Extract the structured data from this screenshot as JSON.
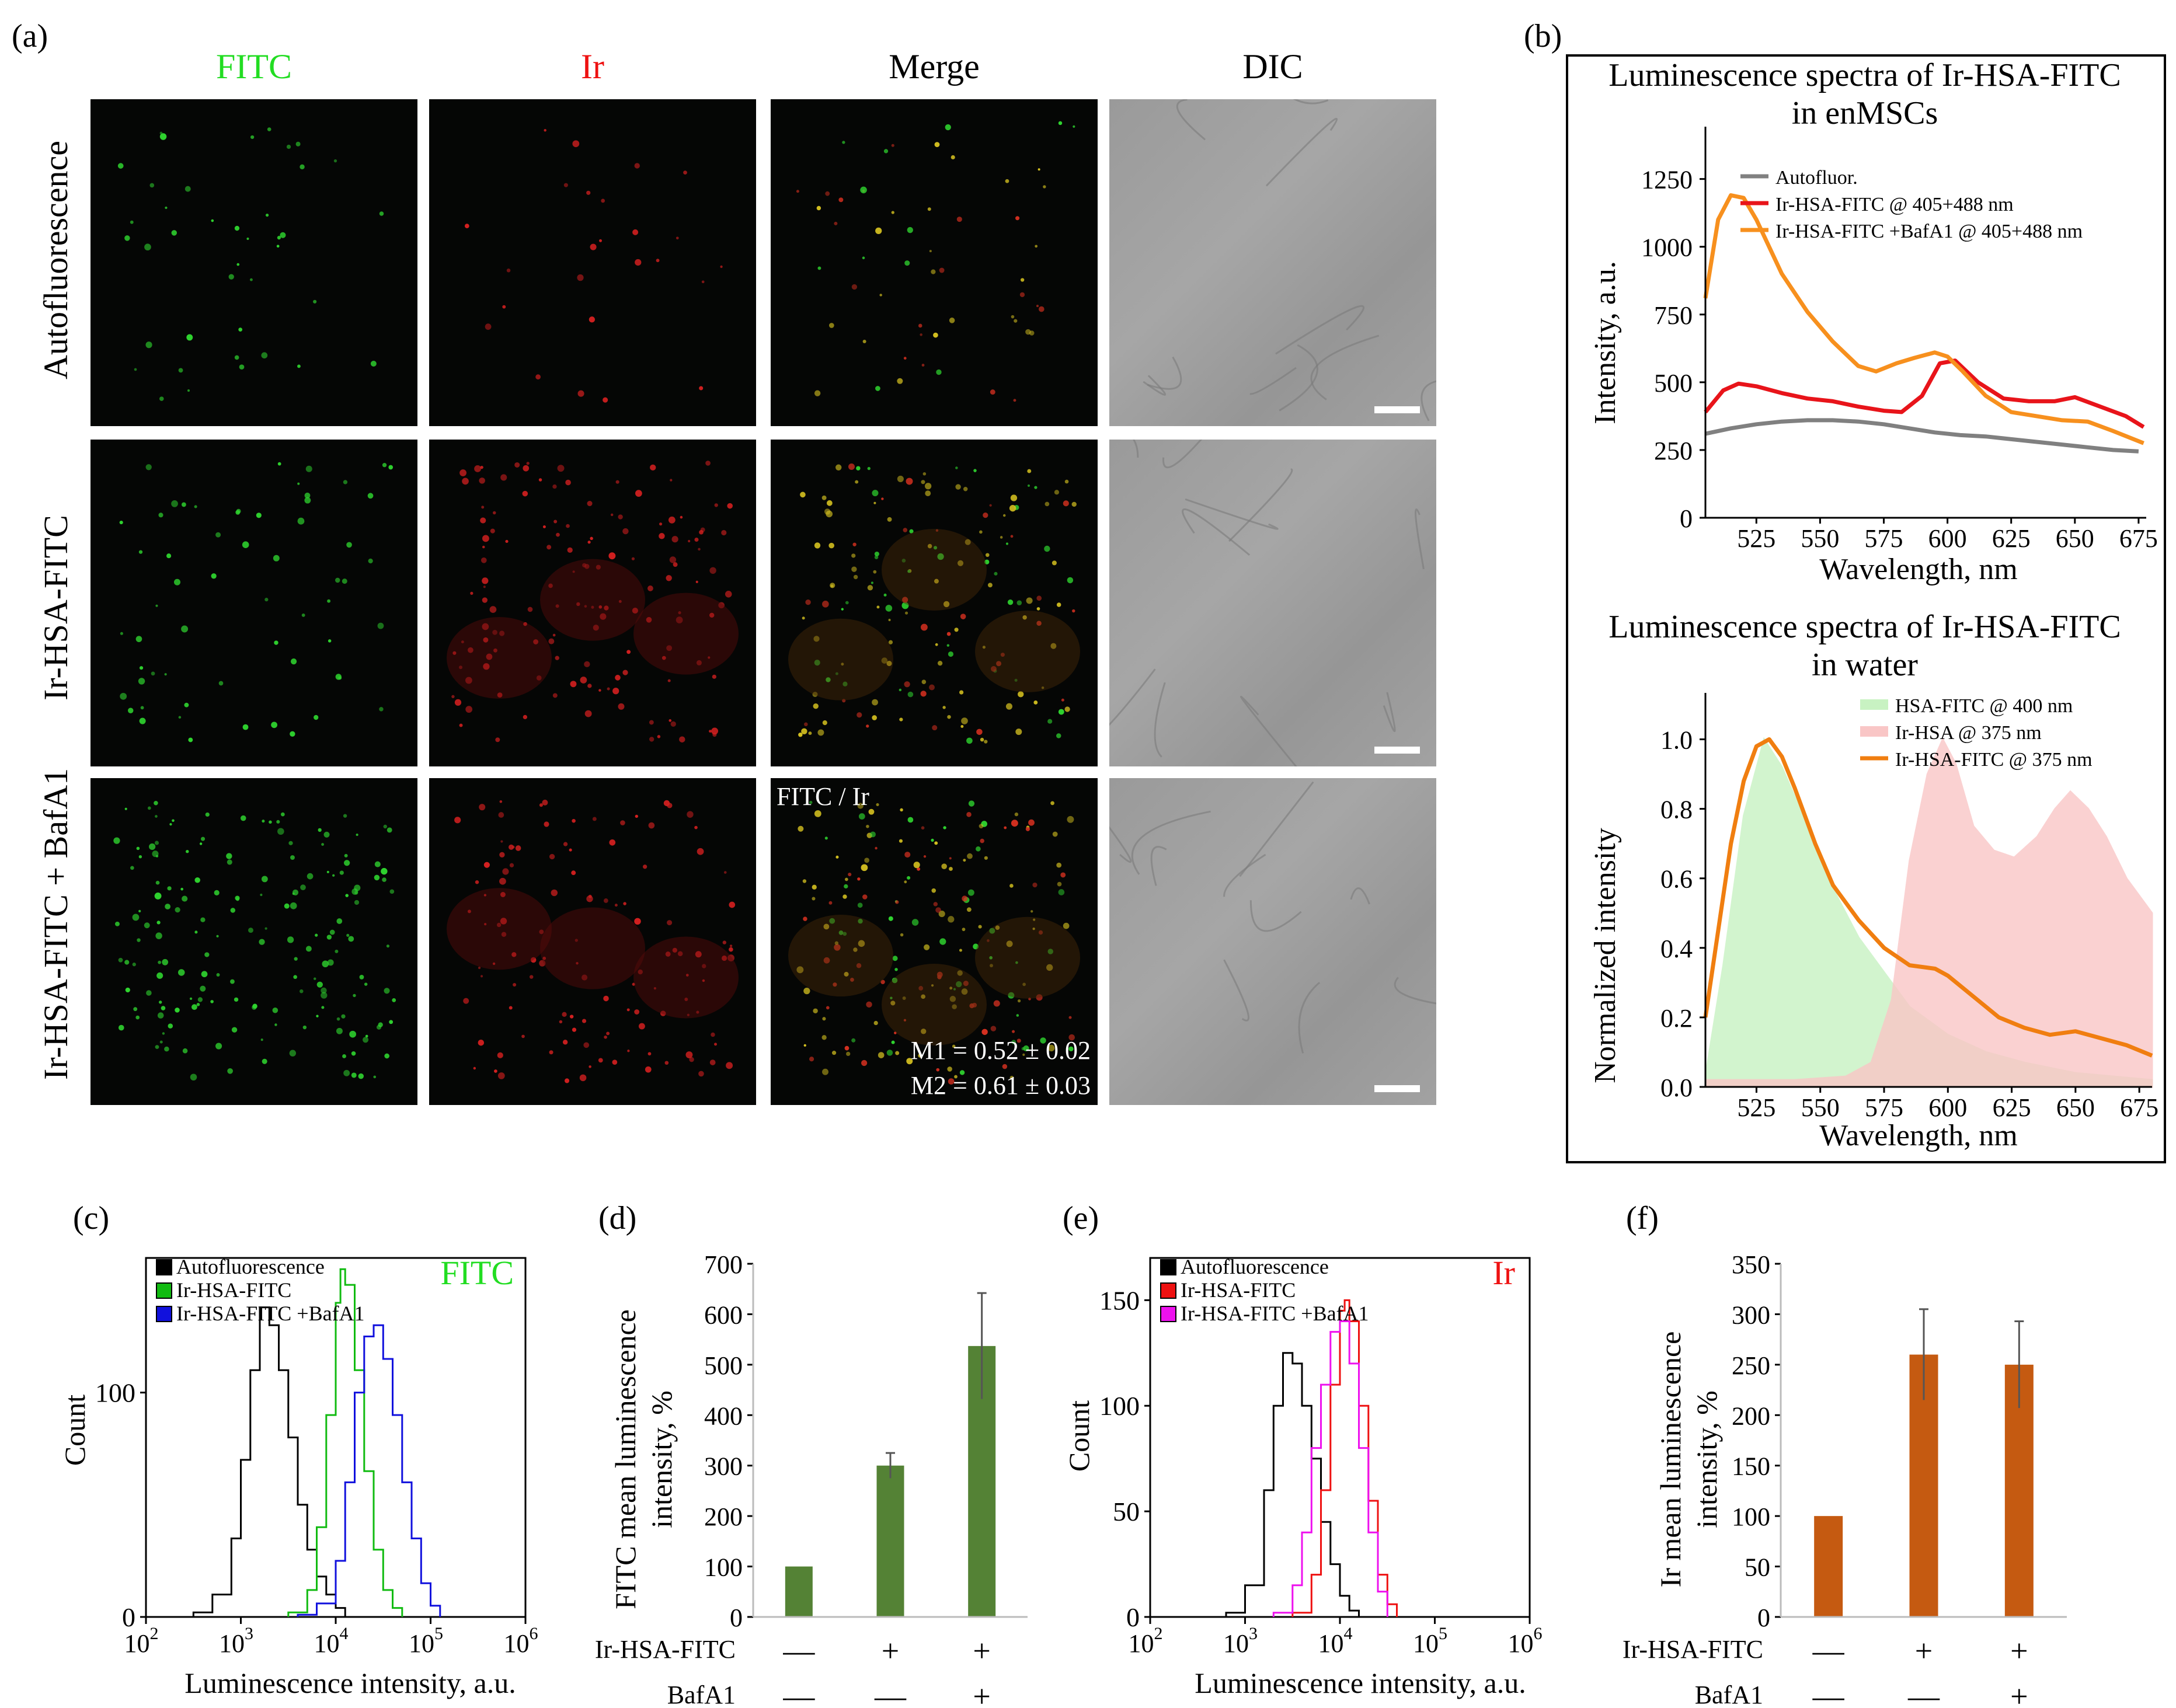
{
  "panel_a": {
    "letter": "(a)",
    "columns": [
      {
        "label": "FITC",
        "color": "#22dd22"
      },
      {
        "label": "Ir",
        "color": "#ee1111"
      },
      {
        "label": "Merge",
        "color": "#000000"
      },
      {
        "label": "DIC",
        "color": "#000000"
      }
    ],
    "rows": [
      "Autofluorescence",
      "Ir-HSA-FITC",
      "Ir-HSA-FITC + BafA1"
    ],
    "merge_label": "FITC / Ir",
    "m1": "M1 = 0.52 ± 0.02",
    "m2": "M2 = 0.61 ± 0.03"
  },
  "panel_b": {
    "letter": "(b)",
    "chart_data": [
      {
        "type": "line",
        "title_line1": "Luminescence spectra of Ir-HSA-FITC",
        "title_line2": "in enMSCs",
        "xlabel": "Wavelength, nm",
        "ylabel": "Intensity, a.u.",
        "xlim": [
          505,
          678
        ],
        "ylim": [
          0,
          1400
        ],
        "xticks": [
          "525",
          "550",
          "575",
          "600",
          "625",
          "650",
          "675"
        ],
        "yticks": [
          "0",
          "250",
          "500",
          "750",
          "1000",
          "1250"
        ],
        "series": [
          {
            "name": "Autofluor.",
            "color": "#808080",
            "x": [
              505,
              515,
              525,
              535,
              545,
              555,
              565,
              575,
              585,
              595,
              605,
              615,
              625,
              635,
              645,
              655,
              665,
              675
            ],
            "y": [
              310,
              330,
              345,
              355,
              360,
              360,
              355,
              345,
              330,
              315,
              305,
              300,
              290,
              280,
              270,
              260,
              250,
              245
            ]
          },
          {
            "name": "Ir-HSA-FITC @ 405+488 nm",
            "color": "#e8141a",
            "x": [
              505,
              512,
              518,
              525,
              535,
              545,
              555,
              565,
              575,
              582,
              590,
              597,
              603,
              612,
              622,
              632,
              642,
              650,
              660,
              670,
              677
            ],
            "y": [
              390,
              470,
              495,
              485,
              460,
              440,
              430,
              410,
              395,
              390,
              450,
              570,
              580,
              500,
              440,
              430,
              430,
              445,
              410,
              375,
              335
            ]
          },
          {
            "name": "Ir-HSA-FITC +BafA1 @ 405+488 nm",
            "color": "#f7901e",
            "x": [
              505,
              510,
              515,
              520,
              525,
              535,
              545,
              555,
              565,
              572,
              580,
              587,
              595,
              600,
              606,
              615,
              625,
              635,
              645,
              655,
              665,
              677
            ],
            "y": [
              810,
              1100,
              1190,
              1180,
              1100,
              900,
              760,
              650,
              560,
              540,
              570,
              590,
              610,
              595,
              540,
              450,
              390,
              375,
              360,
              355,
              320,
              275
            ]
          }
        ]
      },
      {
        "type": "area",
        "title_line1": "Luminescence spectra of Ir-HSA-FITC",
        "title_line2": "in water",
        "xlabel": "Wavelength, nm",
        "ylabel": "Normalized intensity",
        "xlim": [
          505,
          680
        ],
        "ylim": [
          0,
          1.1
        ],
        "xticks": [
          "525",
          "550",
          "575",
          "600",
          "625",
          "650",
          "675"
        ],
        "yticks": [
          "0.0",
          "0.2",
          "0.4",
          "0.6",
          "0.8",
          "1.0"
        ],
        "series": [
          {
            "name": "HSA-FITC @ 400 nm",
            "color": "#c8f2c2",
            "fill": true,
            "x": [
              505,
              512,
              520,
              528,
              535,
              545,
              555,
              565,
              575,
              585,
              600,
              615,
              630,
              650,
              665,
              680
            ],
            "y": [
              0.03,
              0.35,
              0.78,
              1.0,
              0.92,
              0.75,
              0.57,
              0.43,
              0.33,
              0.23,
              0.15,
              0.1,
              0.07,
              0.04,
              0.03,
              0.02
            ]
          },
          {
            "name": "Ir-HSA @ 375 nm",
            "color": "#f9c6c6",
            "fill": true,
            "x": [
              505,
              540,
              560,
              570,
              578,
              585,
              592,
              598,
              603,
              610,
              618,
              626,
              635,
              642,
              648,
              655,
              662,
              670,
              680
            ],
            "y": [
              0.02,
              0.02,
              0.03,
              0.07,
              0.25,
              0.65,
              0.9,
              1.0,
              0.93,
              0.75,
              0.68,
              0.66,
              0.72,
              0.8,
              0.85,
              0.8,
              0.72,
              0.6,
              0.5
            ]
          },
          {
            "name": "Ir-HSA-FITC @ 375 nm",
            "color": "#f07e10",
            "fill": false,
            "x": [
              505,
              510,
              515,
              520,
              525,
              530,
              535,
              540,
              548,
              555,
              565,
              575,
              585,
              595,
              600,
              610,
              620,
              630,
              640,
              650,
              660,
              670,
              680
            ],
            "y": [
              0.2,
              0.45,
              0.7,
              0.88,
              0.98,
              1.0,
              0.95,
              0.86,
              0.7,
              0.58,
              0.48,
              0.4,
              0.35,
              0.34,
              0.32,
              0.26,
              0.2,
              0.17,
              0.15,
              0.16,
              0.14,
              0.12,
              0.09
            ]
          }
        ]
      }
    ]
  },
  "panel_c": {
    "letter": "(c)",
    "channel": "FITC",
    "channel_color": "#22dd22",
    "chart_data": {
      "type": "line",
      "xlabel": "Luminescence intensity, a.u.",
      "ylabel": "Count",
      "xlim_log10": [
        2,
        6
      ],
      "ylim": [
        0,
        160
      ],
      "xtick_base": "10",
      "xtick_exps": [
        "2",
        "3",
        "4",
        "5",
        "6"
      ],
      "yticks": [
        "0",
        "100"
      ],
      "series": [
        {
          "name": "Autofluorescence",
          "color": "#000000",
          "x": [
            2.5,
            2.7,
            2.9,
            3.0,
            3.1,
            3.2,
            3.3,
            3.4,
            3.5,
            3.6,
            3.7,
            3.8,
            3.9,
            4.0,
            4.1
          ],
          "y": [
            2,
            10,
            35,
            70,
            110,
            138,
            130,
            110,
            80,
            50,
            30,
            18,
            10,
            4,
            1
          ]
        },
        {
          "name": "Ir-HSA-FITC",
          "color": "#11bb11",
          "x": [
            3.5,
            3.7,
            3.8,
            3.9,
            4.0,
            4.05,
            4.1,
            4.2,
            4.3,
            4.4,
            4.5,
            4.6,
            4.7
          ],
          "y": [
            2,
            12,
            40,
            90,
            140,
            155,
            148,
            110,
            65,
            30,
            12,
            4,
            1
          ]
        },
        {
          "name": "Ir-HSA-FITC +BafA1",
          "color": "#1111dd",
          "x": [
            3.6,
            3.8,
            4.0,
            4.1,
            4.2,
            4.3,
            4.4,
            4.5,
            4.6,
            4.7,
            4.8,
            4.9,
            5.0,
            5.1
          ],
          "y": [
            1,
            6,
            25,
            60,
            100,
            125,
            130,
            115,
            90,
            60,
            35,
            15,
            5,
            1
          ]
        }
      ]
    }
  },
  "panel_d": {
    "letter": "(d)",
    "chart_data": {
      "type": "bar",
      "ylabel_line1": "FITC mean luminescence",
      "ylabel_line2": "intensity, %",
      "ylim": [
        0,
        700
      ],
      "yticks": [
        "0",
        "100",
        "200",
        "300",
        "400",
        "500",
        "600",
        "700"
      ],
      "values": [
        100,
        300,
        537
      ],
      "errors": [
        0,
        25,
        105
      ],
      "color": "#548235",
      "rows": [
        {
          "label": "Ir-HSA-FITC",
          "signs": [
            "—",
            "+",
            "+"
          ]
        },
        {
          "label": "BafA1",
          "signs": [
            "—",
            "—",
            "+"
          ]
        }
      ]
    }
  },
  "panel_e": {
    "letter": "(e)",
    "channel": "Ir",
    "channel_color": "#ee1111",
    "chart_data": {
      "type": "line",
      "xlabel": "Luminescence intensity, a.u.",
      "ylabel": "Count",
      "xlim_log10": [
        2,
        6
      ],
      "ylim": [
        0,
        170
      ],
      "xtick_base": "10",
      "xtick_exps": [
        "2",
        "3",
        "4",
        "5",
        "6"
      ],
      "yticks": [
        "0",
        "50",
        "100",
        "150"
      ],
      "series": [
        {
          "name": "Autofluorescence",
          "color": "#000000",
          "x": [
            2.8,
            3.0,
            3.2,
            3.3,
            3.4,
            3.5,
            3.6,
            3.7,
            3.8,
            3.9,
            4.0,
            4.1,
            4.2
          ],
          "y": [
            2,
            15,
            60,
            100,
            125,
            120,
            100,
            75,
            45,
            25,
            10,
            3,
            1
          ]
        },
        {
          "name": "Ir-HSA-FITC",
          "color": "#ee1111",
          "x": [
            3.5,
            3.7,
            3.8,
            3.9,
            4.0,
            4.05,
            4.1,
            4.2,
            4.3,
            4.4,
            4.5,
            4.6
          ],
          "y": [
            2,
            20,
            60,
            110,
            145,
            150,
            140,
            100,
            55,
            20,
            6,
            1
          ]
        },
        {
          "name": "Ir-HSA-FITC +BafA1",
          "color": "#ee11ee",
          "x": [
            3.3,
            3.5,
            3.6,
            3.7,
            3.8,
            3.9,
            4.0,
            4.1,
            4.2,
            4.3,
            4.4,
            4.5
          ],
          "y": [
            2,
            15,
            40,
            80,
            110,
            135,
            140,
            120,
            80,
            40,
            12,
            2
          ]
        }
      ]
    }
  },
  "panel_f": {
    "letter": "(f)",
    "chart_data": {
      "type": "bar",
      "ylabel_line1": "Ir mean luminescence",
      "ylabel_line2": "intensity, %",
      "ylim": [
        0,
        350
      ],
      "yticks": [
        "0",
        "50",
        "100",
        "150",
        "200",
        "250",
        "300",
        "350"
      ],
      "values": [
        100,
        260,
        250
      ],
      "errors": [
        0,
        45,
        43
      ],
      "color": "#c55a11",
      "rows": [
        {
          "label": "Ir-HSA-FITC",
          "signs": [
            "—",
            "+",
            "+"
          ]
        },
        {
          "label": "BafA1",
          "signs": [
            "—",
            "—",
            "+"
          ]
        }
      ]
    }
  }
}
